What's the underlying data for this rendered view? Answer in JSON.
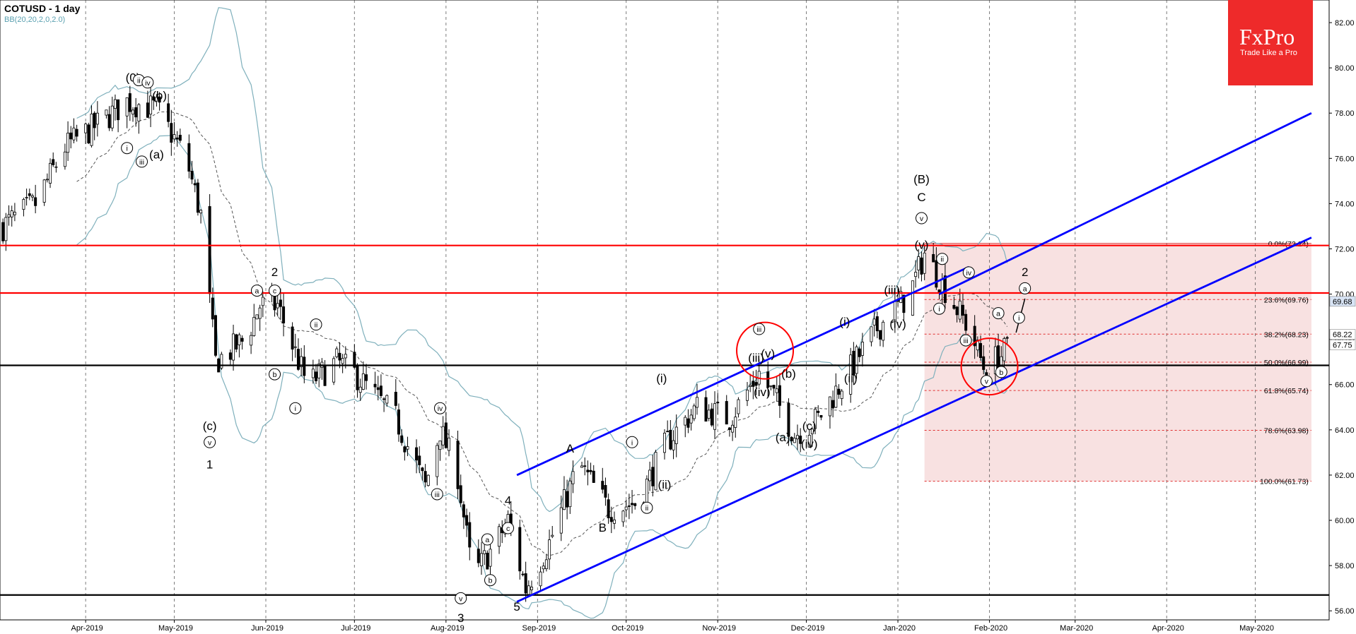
{
  "header": {
    "title": "COTUSD - 1 day",
    "indicator": "BB(20,20,2,0,2.0)"
  },
  "logo": {
    "brand": "FxPro",
    "tagline": "Trade Like a Pro"
  },
  "colors": {
    "resistance": "#ff0000",
    "support": "#000000",
    "channel": "#0000ff",
    "bollinger": "#7fb0bc",
    "fib_zone": "#f7dcdc",
    "logo_bg": "#ee2a2a"
  },
  "chart_data": {
    "type": "candlestick",
    "symbol": "COTUSD",
    "timeframe": "1 day",
    "ylim": [
      55.6,
      83.0
    ],
    "y_ticks": [
      "56.00",
      "58.00",
      "60.00",
      "62.00",
      "64.00",
      "66.00",
      "68.00",
      "70.00",
      "72.00",
      "74.00",
      "76.00",
      "78.00",
      "80.00",
      "82.00"
    ],
    "x_ticks": [
      {
        "date": "2019-04-01",
        "label": "Apr-2019"
      },
      {
        "date": "2019-05-01",
        "label": "May-2019"
      },
      {
        "date": "2019-06-01",
        "label": "Jun-2019"
      },
      {
        "date": "2019-07-01",
        "label": "Jul-2019"
      },
      {
        "date": "2019-08-01",
        "label": "Aug-2019"
      },
      {
        "date": "2019-09-01",
        "label": "Sep-2019"
      },
      {
        "date": "2019-10-01",
        "label": "Oct-2019"
      },
      {
        "date": "2019-11-01",
        "label": "Nov-2019"
      },
      {
        "date": "2019-12-01",
        "label": "Dec-2019"
      },
      {
        "date": "2020-01-01",
        "label": "Jan-2020"
      },
      {
        "date": "2020-02-01",
        "label": "Feb-2020"
      },
      {
        "date": "2020-03-01",
        "label": "Mar-2020"
      },
      {
        "date": "2020-04-01",
        "label": "Apr-2020"
      },
      {
        "date": "2020-05-01",
        "label": "May-2020"
      }
    ],
    "price_path": [
      [
        "2019-03-04",
        73.0
      ],
      [
        "2019-03-15",
        74.0
      ],
      [
        "2019-03-25",
        76.5
      ],
      [
        "2019-04-05",
        77.5
      ],
      [
        "2019-04-15",
        78.5
      ],
      [
        "2019-04-25",
        78.2
      ],
      [
        "2019-05-05",
        76.0
      ],
      [
        "2019-05-10",
        73.5
      ],
      [
        "2019-05-15",
        67.0
      ],
      [
        "2019-05-25",
        68.0
      ],
      [
        "2019-05-30",
        69.5
      ],
      [
        "2019-06-05",
        69.5
      ],
      [
        "2019-06-15",
        66.0
      ],
      [
        "2019-06-25",
        67.0
      ],
      [
        "2019-07-01",
        66.5
      ],
      [
        "2019-07-15",
        64.5
      ],
      [
        "2019-07-25",
        61.5
      ],
      [
        "2019-07-30",
        64.0
      ],
      [
        "2019-08-05",
        62.0
      ],
      [
        "2019-08-10",
        57.5
      ],
      [
        "2019-08-18",
        59.0
      ],
      [
        "2019-08-22",
        60.0
      ],
      [
        "2019-08-28",
        57.0
      ],
      [
        "2019-09-05",
        59.0
      ],
      [
        "2019-09-15",
        62.5
      ],
      [
        "2019-09-25",
        60.5
      ],
      [
        "2019-10-05",
        60.8
      ],
      [
        "2019-10-15",
        63.5
      ],
      [
        "2019-10-25",
        65.0
      ],
      [
        "2019-11-05",
        64.5
      ],
      [
        "2019-11-15",
        66.5
      ],
      [
        "2019-11-20",
        65.5
      ],
      [
        "2019-11-27",
        63.8
      ],
      [
        "2019-12-05",
        64.5
      ],
      [
        "2019-12-15",
        66.5
      ],
      [
        "2019-12-25",
        68.5
      ],
      [
        "2020-01-05",
        70.0
      ],
      [
        "2020-01-10",
        71.8
      ],
      [
        "2020-01-18",
        70.0
      ],
      [
        "2020-01-25",
        68.5
      ],
      [
        "2020-01-30",
        66.8
      ],
      [
        "2020-02-05",
        67.3
      ],
      [
        "2020-02-08",
        67.75
      ]
    ],
    "last_price": "67.75",
    "price_labels": [
      {
        "value": 69.68,
        "text": "69.68"
      },
      {
        "value": 68.22,
        "text": "68.22"
      },
      {
        "value": 67.75,
        "text": "67.75"
      }
    ],
    "horizontal_levels": [
      {
        "value": 72.15,
        "color": "red"
      },
      {
        "value": 70.05,
        "color": "red"
      },
      {
        "value": 66.85,
        "color": "black"
      },
      {
        "value": 56.7,
        "color": "black"
      }
    ],
    "channel_lines": [
      {
        "x1": "2019-08-25",
        "y1": 62.0,
        "x2": "2020-01-25",
        "y2": 71.2
      },
      {
        "x1": "2019-08-25",
        "y1": 56.4,
        "x2": "2020-05-20",
        "y2": 72.5
      },
      {
        "x1": "2020-01-15",
        "y1": 70.0,
        "x2": "2020-05-20",
        "y2": 78.0
      }
    ],
    "fibonacci": {
      "x_start": "2020-01-10",
      "x_end": "2020-05-20",
      "levels": [
        {
          "value": 72.24,
          "label": "0.0%(72.24)"
        },
        {
          "value": 69.76,
          "label": "23.6%(69.76)"
        },
        {
          "value": 68.23,
          "label": "38.2%(68.23)"
        },
        {
          "value": 66.99,
          "label": "50.0%(66.99)"
        },
        {
          "value": 65.74,
          "label": "61.8%(65.74)"
        },
        {
          "value": 63.98,
          "label": "78.6%(63.98)"
        },
        {
          "value": 61.73,
          "label": "100.0%(61.73)"
        }
      ]
    },
    "wave_labels": [
      {
        "d": "2019-04-17",
        "y": 79.4,
        "t": "(0)"
      },
      {
        "d": "2019-04-19",
        "y": 79.3,
        "t": "ii",
        "c": 1
      },
      {
        "d": "2019-04-22",
        "y": 79.2,
        "t": "iv",
        "c": 1
      },
      {
        "d": "2019-04-15",
        "y": 76.3,
        "t": "i",
        "c": 1
      },
      {
        "d": "2019-04-20",
        "y": 75.7,
        "t": "iii",
        "c": 1
      },
      {
        "d": "2019-04-26",
        "y": 78.6,
        "t": "(b)"
      },
      {
        "d": "2019-04-25",
        "y": 76.0,
        "t": "(a)"
      },
      {
        "d": "2019-05-13",
        "y": 64.0,
        "t": "(c)"
      },
      {
        "d": "2019-05-13",
        "y": 63.3,
        "t": "v",
        "c": 1
      },
      {
        "d": "2019-05-13",
        "y": 62.3,
        "t": "1"
      },
      {
        "d": "2019-05-29",
        "y": 70.0,
        "t": "a",
        "c": 1
      },
      {
        "d": "2019-06-04",
        "y": 70.0,
        "t": "c",
        "c": 1
      },
      {
        "d": "2019-06-04",
        "y": 70.8,
        "t": "2"
      },
      {
        "d": "2019-06-04",
        "y": 66.3,
        "t": "b",
        "c": 1
      },
      {
        "d": "2019-06-11",
        "y": 64.8,
        "t": "i",
        "c": 1
      },
      {
        "d": "2019-06-18",
        "y": 68.5,
        "t": "ii",
        "c": 1
      },
      {
        "d": "2019-07-29",
        "y": 61.0,
        "t": "iii",
        "c": 1
      },
      {
        "d": "2019-07-30",
        "y": 64.8,
        "t": "iv",
        "c": 1
      },
      {
        "d": "2019-08-06",
        "y": 56.4,
        "t": "v",
        "c": 1
      },
      {
        "d": "2019-08-06",
        "y": 55.5,
        "t": "3"
      },
      {
        "d": "2019-08-15",
        "y": 59.0,
        "t": "a",
        "c": 1
      },
      {
        "d": "2019-08-16",
        "y": 57.2,
        "t": "b",
        "c": 1
      },
      {
        "d": "2019-08-22",
        "y": 59.5,
        "t": "c",
        "c": 1
      },
      {
        "d": "2019-08-22",
        "y": 60.7,
        "t": "4"
      },
      {
        "d": "2019-08-25",
        "y": 56.0,
        "t": "5"
      },
      {
        "d": "2019-09-12",
        "y": 63.0,
        "t": "A"
      },
      {
        "d": "2019-09-23",
        "y": 59.5,
        "t": "B"
      },
      {
        "d": "2019-10-03",
        "y": 63.3,
        "t": "i",
        "c": 1
      },
      {
        "d": "2019-10-08",
        "y": 60.4,
        "t": "ii",
        "c": 1
      },
      {
        "d": "2019-10-13",
        "y": 66.1,
        "t": "(i)"
      },
      {
        "d": "2019-10-14",
        "y": 61.4,
        "t": "(ii)"
      },
      {
        "d": "2019-11-15",
        "y": 68.3,
        "t": "iii",
        "c": 1
      },
      {
        "d": "2019-11-14",
        "y": 67.0,
        "t": "(iii)"
      },
      {
        "d": "2019-11-18",
        "y": 67.2,
        "t": "(v)"
      },
      {
        "d": "2019-11-16",
        "y": 65.5,
        "t": "(iv)"
      },
      {
        "d": "2019-11-25",
        "y": 66.3,
        "t": "(b)"
      },
      {
        "d": "2019-11-23",
        "y": 63.5,
        "t": "(a)"
      },
      {
        "d": "2019-12-02",
        "y": 64.0,
        "t": "(c)"
      },
      {
        "d": "2019-12-02",
        "y": 63.2,
        "t": "(iv)"
      },
      {
        "d": "2019-12-14",
        "y": 68.6,
        "t": "(i)"
      },
      {
        "d": "2019-12-16",
        "y": 66.1,
        "t": "(ii)"
      },
      {
        "d": "2019-12-30",
        "y": 70.0,
        "t": "(iii)"
      },
      {
        "d": "2020-01-01",
        "y": 68.5,
        "t": "(iv)"
      },
      {
        "d": "2020-01-09",
        "y": 74.9,
        "t": "(B)"
      },
      {
        "d": "2020-01-09",
        "y": 74.1,
        "t": "C"
      },
      {
        "d": "2020-01-09",
        "y": 73.2,
        "t": "v",
        "c": 1
      },
      {
        "d": "2020-01-09",
        "y": 72.0,
        "t": "(v)"
      },
      {
        "d": "2020-01-16",
        "y": 71.4,
        "t": "ii",
        "c": 1
      },
      {
        "d": "2020-01-15",
        "y": 69.2,
        "t": "i",
        "c": 1
      },
      {
        "d": "2020-01-25",
        "y": 70.8,
        "t": "iv",
        "c": 1
      },
      {
        "d": "2020-01-24",
        "y": 67.8,
        "t": "iii",
        "c": 1
      },
      {
        "d": "2020-01-31",
        "y": 66.0,
        "t": "v",
        "c": 1
      },
      {
        "d": "2020-02-04",
        "y": 69.0,
        "t": "a",
        "c": 1
      },
      {
        "d": "2020-02-05",
        "y": 66.4,
        "t": "b",
        "c": 1
      },
      {
        "d": "2020-02-11",
        "y": 68.8,
        "t": "i",
        "c": 1
      },
      {
        "d": "2020-02-13",
        "y": 70.1,
        "t": "a",
        "c": 1
      },
      {
        "d": "2020-02-13",
        "y": 70.8,
        "t": "2"
      }
    ],
    "highlight_circles": [
      {
        "d": "2019-11-17",
        "y": 67.5
      },
      {
        "d": "2020-02-01",
        "y": 66.8
      }
    ]
  }
}
